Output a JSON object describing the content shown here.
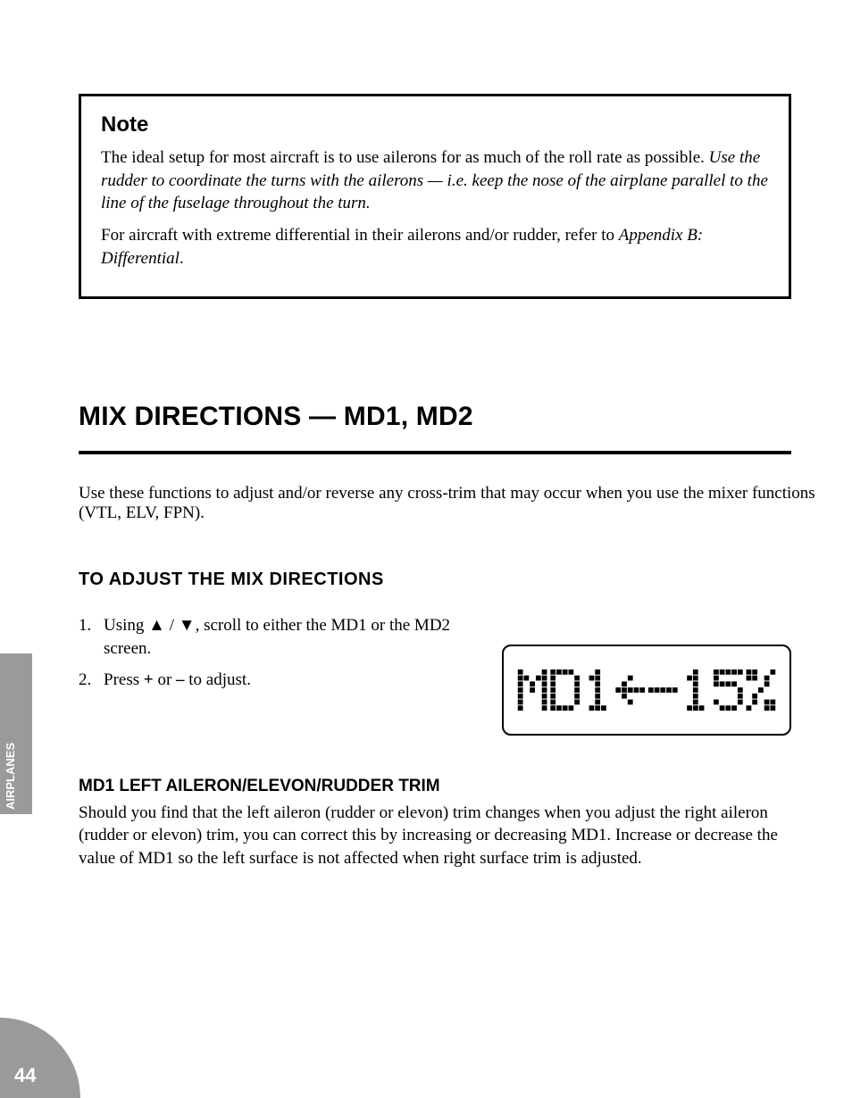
{
  "note": {
    "title": "Note",
    "paragraph1_prefix": "The ideal setup for most aircraft is to use ailerons for as much of the roll rate as possible. ",
    "paragraph1_italic": "Use the rudder to coordinate the turns with the ailerons — i.e. keep the nose of the airplane parallel to the line of the fuselage throughout the turn.",
    "paragraph2_prefix": "For aircraft with extreme differential in their ailerons and/or rudder, refer to ",
    "paragraph2_ref": "Appendix B: Differential",
    "paragraph2_suffix": "."
  },
  "section": {
    "heading": "MIX DIRECTIONS — MD1, MD2",
    "intro": "Use these functions to adjust and/or reverse any cross-trim that may occur when you use the mixer functions (VTL, ELV, FPN).",
    "subheading": "TO ADJUST THE MIX DIRECTIONS",
    "steps": [
      {
        "num": "1.",
        "body_prefix": "Using ",
        "up": "▲",
        "mid": " / ",
        "down": "▼",
        "body_suffix": ", scroll to either the MD1 or the MD2 screen."
      },
      {
        "num": "2.",
        "body_prefix": "Press ",
        "plus": "+",
        "mid": " or ",
        "minus": "–",
        "body_suffix": " to adjust."
      }
    ],
    "lcd_text": "MD1←-15%",
    "follow_heading": "MD1 LEFT AILERON/ELEVON/RUDDER TRIM",
    "follow_para": "Should you find that the left aileron (rudder or elevon) trim changes when you adjust the right aileron (rudder or elevon) trim, you can correct this by increasing or decreasing MD1. Increase or decrease the value of MD1 so the left surface is not affected when right surface trim is adjusted."
  },
  "side_tab": "AIRPLANES",
  "page_number": "44",
  "colors": {
    "text": "#000000",
    "background": "#ffffff",
    "tab_bg": "#9a9a9a",
    "tab_text": "#ffffff"
  },
  "lcd": {
    "cols": 8,
    "rows": 7,
    "cell": 6,
    "gap": 1,
    "char_gap": 4,
    "padding_x": 6,
    "padding_y": 10,
    "on": "#000000",
    "off": "#ffffff",
    "glyphs": {
      "M": [
        "10001",
        "11011",
        "10101",
        "10101",
        "10001",
        "10001",
        "10001"
      ],
      "D": [
        "11110",
        "10001",
        "10001",
        "10001",
        "10001",
        "10001",
        "11110"
      ],
      "1": [
        "00100",
        "01100",
        "00100",
        "00100",
        "00100",
        "00100",
        "01110"
      ],
      "←": [
        "00000",
        "00100",
        "01000",
        "11111",
        "01000",
        "00100",
        "00000"
      ],
      "-": [
        "00000",
        "00000",
        "00000",
        "11111",
        "00000",
        "00000",
        "00000"
      ],
      "5": [
        "11111",
        "10000",
        "11110",
        "00001",
        "00001",
        "10001",
        "01110"
      ],
      "%": [
        "11001",
        "11010",
        "00010",
        "00100",
        "01000",
        "01011",
        "10011"
      ]
    }
  }
}
